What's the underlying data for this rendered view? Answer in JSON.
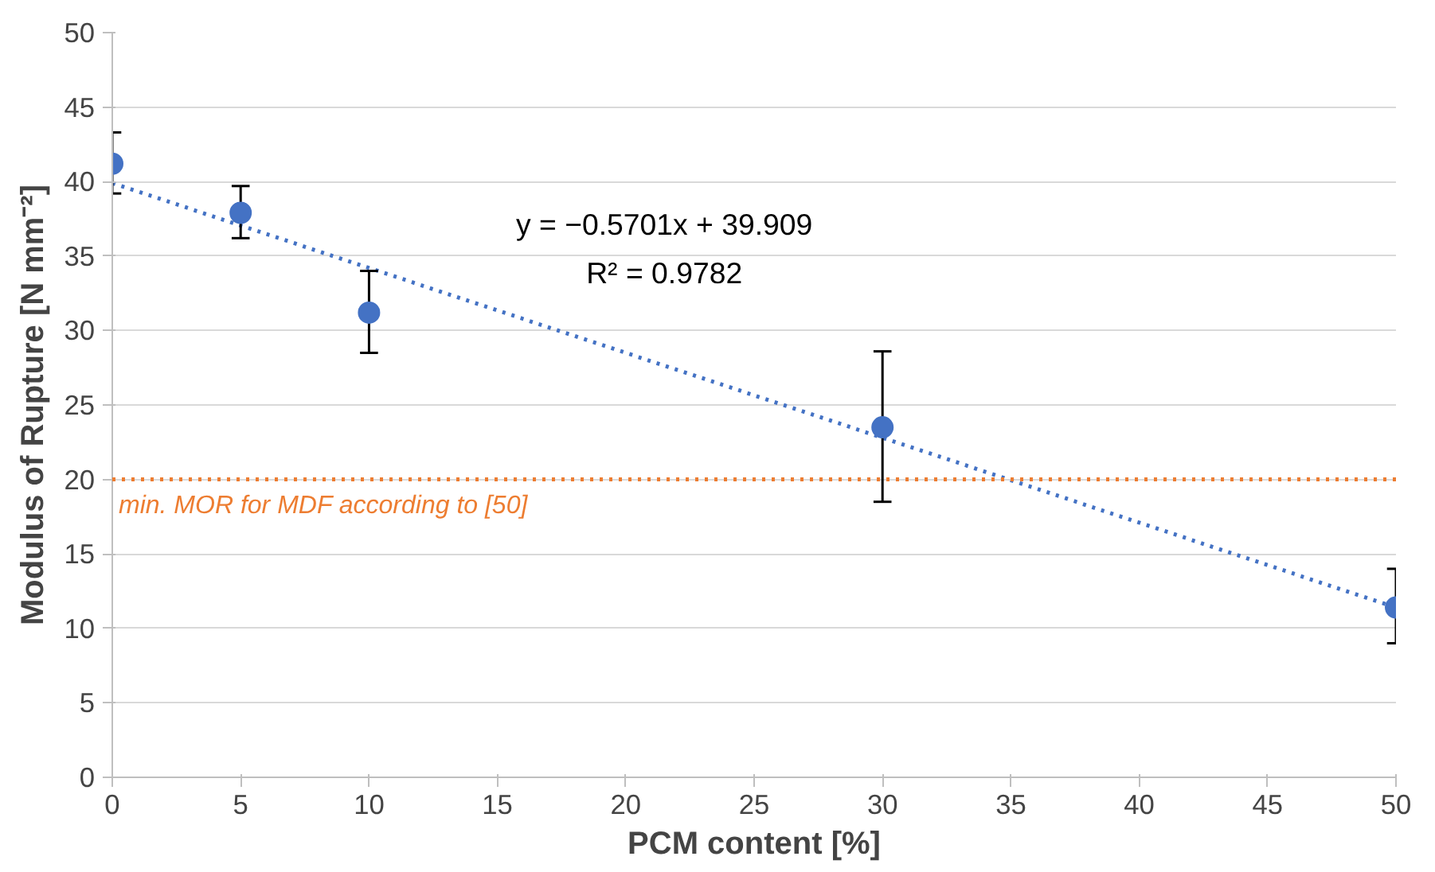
{
  "chart_data": {
    "type": "scatter",
    "xlabel": "PCM content [%]",
    "ylabel": "Modulus of Rupture [N mm⁻²]",
    "xlim": [
      0,
      50
    ],
    "ylim": [
      0,
      50
    ],
    "xticks": [
      0,
      5,
      10,
      15,
      20,
      25,
      30,
      35,
      40,
      45,
      50
    ],
    "yticks": [
      0,
      5,
      10,
      15,
      20,
      25,
      30,
      35,
      40,
      45,
      50
    ],
    "grid": "y",
    "marker": "circle",
    "series": [
      {
        "color": "#4472c4",
        "x": [
          0,
          5,
          10,
          30,
          50
        ],
        "values": [
          41.2,
          37.9,
          31.2,
          23.5,
          11.4
        ],
        "errors": [
          [
            39.2,
            43.3
          ],
          [
            36.2,
            39.7
          ],
          [
            28.5,
            34.0
          ],
          [
            18.5,
            28.6
          ],
          [
            9.0,
            14.0
          ]
        ]
      },
      {
        "type": "line",
        "marker": "none",
        "color": "#4472c4",
        "line_style": "dotted",
        "x": [
          0,
          50
        ],
        "values": [
          39.9,
          11.4
        ]
      }
    ],
    "ref_lines": [
      {
        "axis": "y",
        "value": 20,
        "label": "min. MOR for MDF according to [50]",
        "color": "#ed7d31",
        "line_style": "dotted"
      }
    ],
    "annotations": [
      "y = −0.5701x + 39.909",
      "R² = 0.9782"
    ]
  }
}
